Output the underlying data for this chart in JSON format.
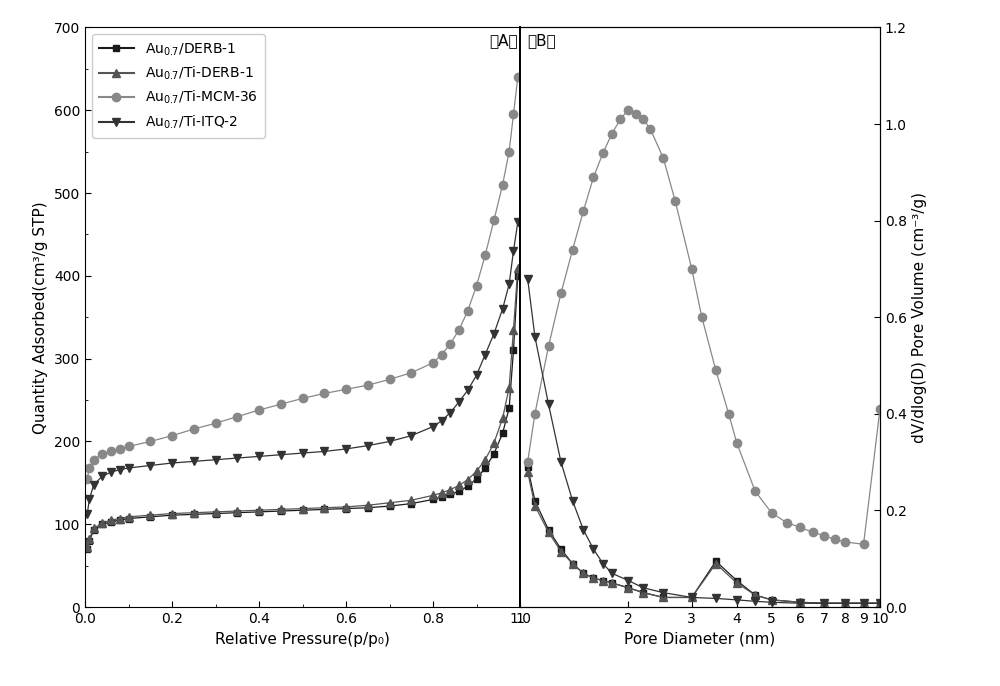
{
  "title_A": "（A）",
  "title_B": "（B）",
  "xlabel_A": "Relative Pressure(p/p₀)",
  "xlabel_B": "Pore Diameter (nm)",
  "ylabel_A": "Quantity Adsorbed(cm³/g STP)",
  "ylabel_B": "dV/dlog(D) Pore Volume (cm⁻³/g)",
  "series": [
    {
      "label": "Au$_{0.7}$/DERB-1",
      "color": "#1a1a1a",
      "marker": "s",
      "linestyle": "-",
      "markersize": 5,
      "adsorption_x": [
        0.005,
        0.01,
        0.02,
        0.04,
        0.06,
        0.08,
        0.1,
        0.15,
        0.2,
        0.25,
        0.3,
        0.35,
        0.4,
        0.45,
        0.5,
        0.55,
        0.6,
        0.65,
        0.7,
        0.75,
        0.8,
        0.82,
        0.84,
        0.86,
        0.88,
        0.9,
        0.92,
        0.94,
        0.96,
        0.975,
        0.985,
        0.995
      ],
      "adsorption_y": [
        70,
        80,
        93,
        100,
        103,
        105,
        107,
        109,
        111,
        112,
        113,
        114,
        115,
        116,
        117,
        118,
        119,
        120,
        122,
        125,
        130,
        133,
        136,
        140,
        146,
        155,
        168,
        185,
        210,
        240,
        310,
        400
      ],
      "pore_x": [
        1.05,
        1.1,
        1.2,
        1.3,
        1.4,
        1.5,
        1.6,
        1.7,
        1.8,
        2.0,
        2.2,
        2.5,
        3.0,
        3.5,
        4.0,
        4.5,
        5.0,
        6.0,
        7.0,
        8.0,
        9.0,
        10.0
      ],
      "pore_y": [
        0.29,
        0.22,
        0.16,
        0.12,
        0.09,
        0.07,
        0.06,
        0.055,
        0.05,
        0.04,
        0.03,
        0.02,
        0.02,
        0.095,
        0.055,
        0.025,
        0.015,
        0.01,
        0.008,
        0.008,
        0.008,
        0.008
      ]
    },
    {
      "label": "Au$_{0.7}$/Ti-DERB-1",
      "color": "#555555",
      "marker": "^",
      "linestyle": "-",
      "markersize": 6,
      "adsorption_x": [
        0.005,
        0.01,
        0.02,
        0.04,
        0.06,
        0.08,
        0.1,
        0.15,
        0.2,
        0.25,
        0.3,
        0.35,
        0.4,
        0.45,
        0.5,
        0.55,
        0.6,
        0.65,
        0.7,
        0.75,
        0.8,
        0.82,
        0.84,
        0.86,
        0.88,
        0.9,
        0.92,
        0.94,
        0.96,
        0.975,
        0.985,
        0.995
      ],
      "adsorption_y": [
        72,
        82,
        95,
        102,
        105,
        107,
        109,
        111,
        113,
        114,
        115,
        116,
        117,
        118,
        119,
        120,
        121,
        123,
        126,
        129,
        135,
        138,
        142,
        147,
        154,
        164,
        178,
        198,
        228,
        265,
        335,
        410
      ],
      "pore_x": [
        1.05,
        1.1,
        1.2,
        1.3,
        1.4,
        1.5,
        1.6,
        1.7,
        1.8,
        2.0,
        2.2,
        2.5,
        3.0,
        3.5,
        4.0,
        4.5,
        5.0,
        6.0,
        7.0,
        8.0,
        9.0,
        10.0
      ],
      "pore_y": [
        0.28,
        0.21,
        0.155,
        0.115,
        0.09,
        0.07,
        0.06,
        0.055,
        0.05,
        0.04,
        0.03,
        0.02,
        0.02,
        0.09,
        0.05,
        0.025,
        0.015,
        0.01,
        0.008,
        0.008,
        0.008,
        0.008
      ]
    },
    {
      "label": "Au$_{0.7}$/Ti-MCM-36",
      "color": "#888888",
      "marker": "o",
      "linestyle": "-",
      "markersize": 6,
      "adsorption_x": [
        0.005,
        0.01,
        0.02,
        0.04,
        0.06,
        0.08,
        0.1,
        0.15,
        0.2,
        0.25,
        0.3,
        0.35,
        0.4,
        0.45,
        0.5,
        0.55,
        0.6,
        0.65,
        0.7,
        0.75,
        0.8,
        0.82,
        0.84,
        0.86,
        0.88,
        0.9,
        0.92,
        0.94,
        0.96,
        0.975,
        0.985,
        0.995
      ],
      "adsorption_y": [
        155,
        168,
        178,
        185,
        188,
        191,
        194,
        200,
        207,
        215,
        222,
        230,
        238,
        245,
        252,
        258,
        263,
        268,
        275,
        283,
        295,
        305,
        318,
        335,
        358,
        388,
        425,
        467,
        510,
        550,
        595,
        640
      ],
      "pore_x": [
        1.05,
        1.1,
        1.2,
        1.3,
        1.4,
        1.5,
        1.6,
        1.7,
        1.8,
        1.9,
        2.0,
        2.1,
        2.2,
        2.3,
        2.5,
        2.7,
        3.0,
        3.2,
        3.5,
        3.8,
        4.0,
        4.5,
        5.0,
        5.5,
        6.0,
        6.5,
        7.0,
        7.5,
        8.0,
        9.0,
        10.0
      ],
      "pore_y": [
        0.3,
        0.4,
        0.54,
        0.65,
        0.74,
        0.82,
        0.89,
        0.94,
        0.98,
        1.01,
        1.03,
        1.02,
        1.01,
        0.99,
        0.93,
        0.84,
        0.7,
        0.6,
        0.49,
        0.4,
        0.34,
        0.24,
        0.195,
        0.175,
        0.165,
        0.155,
        0.148,
        0.14,
        0.135,
        0.13,
        0.41
      ]
    },
    {
      "label": "Au$_{0.7}$/Ti-ITQ-2",
      "color": "#333333",
      "marker": "v",
      "linestyle": "-",
      "markersize": 6,
      "adsorption_x": [
        0.005,
        0.01,
        0.02,
        0.04,
        0.06,
        0.08,
        0.1,
        0.15,
        0.2,
        0.25,
        0.3,
        0.35,
        0.4,
        0.45,
        0.5,
        0.55,
        0.6,
        0.65,
        0.7,
        0.75,
        0.8,
        0.82,
        0.84,
        0.86,
        0.88,
        0.9,
        0.92,
        0.94,
        0.96,
        0.975,
        0.985,
        0.995
      ],
      "adsorption_y": [
        112,
        130,
        148,
        158,
        163,
        166,
        168,
        171,
        174,
        176,
        178,
        180,
        182,
        184,
        186,
        188,
        191,
        195,
        200,
        207,
        218,
        225,
        235,
        248,
        262,
        280,
        305,
        330,
        360,
        390,
        430,
        465
      ],
      "pore_x": [
        1.05,
        1.1,
        1.2,
        1.3,
        1.4,
        1.5,
        1.6,
        1.7,
        1.8,
        2.0,
        2.2,
        2.5,
        3.0,
        3.5,
        4.0,
        4.5,
        5.0,
        6.0,
        7.0,
        8.0,
        9.0,
        10.0
      ],
      "pore_y": [
        0.68,
        0.56,
        0.42,
        0.3,
        0.22,
        0.16,
        0.12,
        0.09,
        0.07,
        0.055,
        0.04,
        0.03,
        0.02,
        0.018,
        0.015,
        0.012,
        0.01,
        0.008,
        0.008,
        0.008,
        0.008,
        0.008
      ]
    }
  ],
  "ylim_A": [
    0,
    700
  ],
  "ylim_B": [
    0,
    1.2
  ],
  "yticks_A": [
    0,
    100,
    200,
    300,
    400,
    500,
    600,
    700
  ],
  "yticks_B": [
    0.0,
    0.2,
    0.4,
    0.6,
    0.8,
    1.0,
    1.2
  ],
  "background_color": "#ffffff"
}
